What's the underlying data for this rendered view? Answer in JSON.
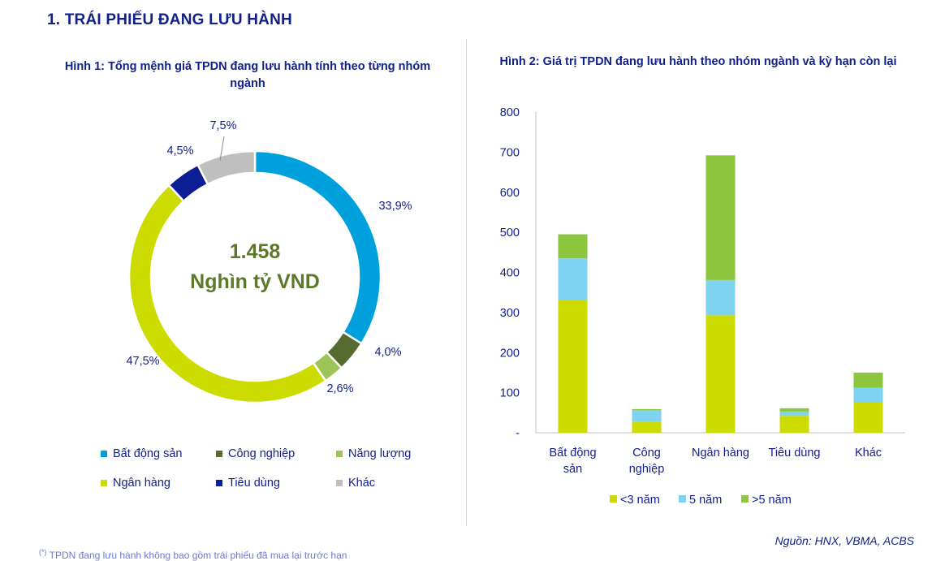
{
  "header": {
    "section_title": "1.   TRÁI PHIẾU ĐANG LƯU HÀNH"
  },
  "colors": {
    "bds": "#00a0dc",
    "cong_nghiep": "#556b2f",
    "nang_luong": "#9bc556",
    "ngan_hang": "#cddc00",
    "tieu_dung": "#0c1e96",
    "khac": "#bfbfbf",
    "lt3": "#cddc00",
    "y5": "#7dd3f0",
    "gt5": "#8cc63f",
    "center_text": "#5a7a2a"
  },
  "footer": {
    "source": "Nguồn: HNX, VBMA, ACBS",
    "footnote_mark": "(*)",
    "footnote_text": "TPDN đang lưu hành không bao gồm trái phiếu đã mua lại trước hạn"
  },
  "chart_data": [
    {
      "type": "pie",
      "title": "Hình 1: Tổng mệnh giá TPDN đang lưu hành tính theo từng nhóm ngành",
      "center_value": "1.458",
      "center_unit": "Nghìn tỷ VND",
      "slices": [
        {
          "label": "Bất động sản",
          "value": 33.9,
          "display": "33,9%"
        },
        {
          "label": "Công nghiệp",
          "value": 4.0,
          "display": "4,0%"
        },
        {
          "label": "Năng lượng",
          "value": 2.6,
          "display": "2,6%"
        },
        {
          "label": "Ngân hàng",
          "value": 47.5,
          "display": "47,5%"
        },
        {
          "label": "Tiêu dùng",
          "value": 4.5,
          "display": "4,5%"
        },
        {
          "label": "Khác",
          "value": 7.5,
          "display": "7,5%"
        }
      ],
      "legend_placement": "bottom"
    },
    {
      "type": "bar",
      "stacked": true,
      "title": "Hình 2: Giá trị TPDN đang lưu hành theo nhóm ngành và kỳ hạn còn lại",
      "categories": [
        "Bất động sản",
        "Công nghiệp",
        "Ngân hàng",
        "Tiêu dùng",
        "Khác"
      ],
      "series": [
        {
          "name": "<3 năm",
          "values": [
            330,
            27,
            293,
            42,
            77
          ]
        },
        {
          "name": "5 năm",
          "values": [
            105,
            29,
            88,
            11,
            35
          ]
        },
        {
          "name": ">5 năm",
          "values": [
            60,
            3,
            311,
            8,
            38
          ]
        }
      ],
      "ylim": [
        0,
        800
      ],
      "yticks": [
        "-",
        "100",
        "200",
        "300",
        "400",
        "500",
        "600",
        "700",
        "800"
      ],
      "grid": false,
      "legend_placement": "bottom"
    }
  ]
}
